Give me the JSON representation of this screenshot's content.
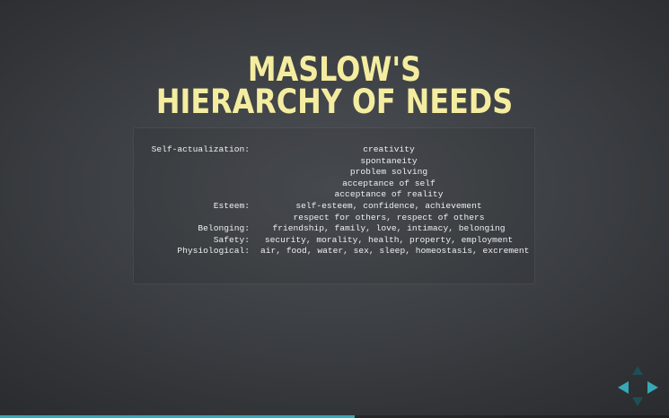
{
  "title": {
    "line1": "MASLOW'S",
    "line2": "HIERARCHY OF NEEDS"
  },
  "needs": [
    {
      "label": "Self-actualization:",
      "value": "creativity"
    },
    {
      "label": "",
      "value": "spontaneity"
    },
    {
      "label": "",
      "value": "problem solving"
    },
    {
      "label": "",
      "value": "acceptance of self"
    },
    {
      "label": "",
      "value": "acceptance of reality"
    },
    {
      "label": "Esteem:",
      "value": "self-esteem, confidence, achievement"
    },
    {
      "label": "",
      "value": "respect for others, respect of others"
    },
    {
      "label": "Belonging:",
      "value": "friendship, family, love, intimacy, belonging"
    },
    {
      "label": "Safety:",
      "value": "security, morality, health, property, employment"
    },
    {
      "label": "Physiological:",
      "value": "air, food, water, sex, sleep, homeostasis, excrement"
    }
  ],
  "controls": {
    "up_icon": "arrow-up-icon",
    "down_icon": "arrow-down-icon",
    "left_icon": "arrow-left-icon",
    "right_icon": "arrow-right-icon",
    "enabled_color": "#35a9b5",
    "disabled_color": "#1f4f55"
  },
  "progress": {
    "fraction": 0.53,
    "color": "#35a9b5"
  }
}
